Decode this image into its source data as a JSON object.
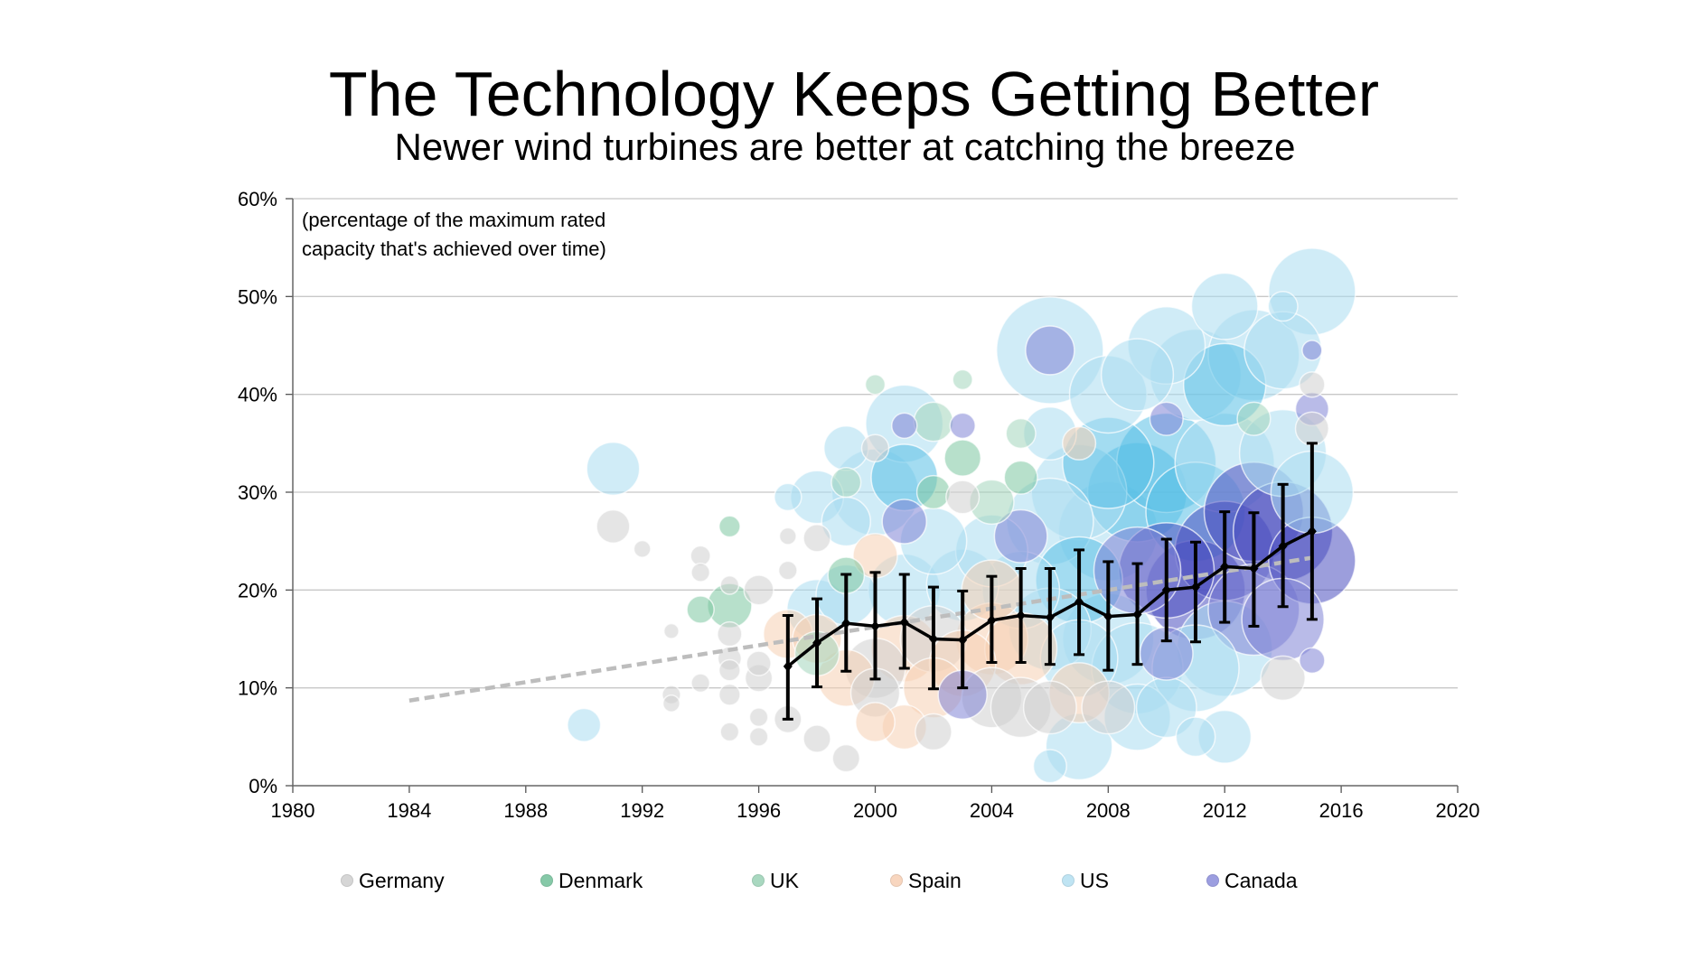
{
  "header": {
    "title": "The Technology Keeps Getting Better",
    "subtitle": "Newer wind turbines are better at catching the breeze"
  },
  "note": {
    "line1": "(percentage of the maximum rated",
    "line2": "capacity that's achieved over time)"
  },
  "chart_data": {
    "type": "scatter",
    "title": "The Technology Keeps Getting Better",
    "subtitle": "Newer wind turbines are better at catching the breeze",
    "xlabel": "",
    "ylabel": "",
    "xlim": [
      1980,
      2020
    ],
    "ylim": [
      0,
      60
    ],
    "x_ticks": [
      "1980",
      "1984",
      "1988",
      "1992",
      "1996",
      "2000",
      "2004",
      "2008",
      "2012",
      "2016",
      "2020"
    ],
    "y_ticks": [
      "0%",
      "10%",
      "20%",
      "30%",
      "40%",
      "50%",
      "60%"
    ],
    "grid": "horizontal",
    "legend_position": "bottom",
    "legend": [
      {
        "name": "Germany",
        "color": "#d6d6d6"
      },
      {
        "name": "Denmark",
        "color": "#86c9a8"
      },
      {
        "name": "UK",
        "color": "#a9d8c0"
      },
      {
        "name": "Spain",
        "color": "#f8d6bf"
      },
      {
        "name": "US",
        "color": "#bfe4f3"
      },
      {
        "name": "Canada",
        "color": "#9c9ee0"
      }
    ],
    "series_colors": {
      "Germany": "#cfcfcf",
      "Denmark": "#7cc6a0",
      "UK": "#a3d6bb",
      "Spain": "#f6cfb3",
      "US": "#a9ddf1",
      "Canada": "#7f84d6",
      "US_dark": "#58bfe6",
      "Canada_dark": "#4a4fc0"
    },
    "bubbles": [
      {
        "series": "US",
        "x": 1990,
        "y": 6.2,
        "size": 2
      },
      {
        "series": "US",
        "x": 1991,
        "y": 32.4,
        "size": 6
      },
      {
        "series": "Germany",
        "x": 1991,
        "y": 26.5,
        "size": 2
      },
      {
        "series": "Germany",
        "x": 1992,
        "y": 24.2,
        "size": 0.3
      },
      {
        "series": "Germany",
        "x": 1993,
        "y": 9.3,
        "size": 0.4
      },
      {
        "series": "Germany",
        "x": 1993,
        "y": 8.4,
        "size": 0.3
      },
      {
        "series": "Germany",
        "x": 1993,
        "y": 15.8,
        "size": 0.2
      },
      {
        "series": "Germany",
        "x": 1994,
        "y": 23.5,
        "size": 0.5
      },
      {
        "series": "Germany",
        "x": 1994,
        "y": 21.8,
        "size": 0.4
      },
      {
        "series": "Germany",
        "x": 1994,
        "y": 10.5,
        "size": 0.4
      },
      {
        "series": "Denmark",
        "x": 1994,
        "y": 18.0,
        "size": 1.2
      },
      {
        "series": "Germany",
        "x": 1995,
        "y": 13.0,
        "size": 0.8
      },
      {
        "series": "Germany",
        "x": 1995,
        "y": 11.8,
        "size": 0.6
      },
      {
        "series": "Germany",
        "x": 1995,
        "y": 15.5,
        "size": 0.9
      },
      {
        "series": "Germany",
        "x": 1995,
        "y": 9.3,
        "size": 0.6
      },
      {
        "series": "Germany",
        "x": 1995,
        "y": 5.5,
        "size": 0.4
      },
      {
        "series": "Germany",
        "x": 1995,
        "y": 20.5,
        "size": 0.4
      },
      {
        "series": "Denmark",
        "x": 1995,
        "y": 26.5,
        "size": 0.6
      },
      {
        "series": "Denmark",
        "x": 1995,
        "y": 18.4,
        "size": 4
      },
      {
        "series": "Germany",
        "x": 1996,
        "y": 20.0,
        "size": 1.5
      },
      {
        "series": "Germany",
        "x": 1996,
        "y": 11.0,
        "size": 1.2
      },
      {
        "series": "Germany",
        "x": 1996,
        "y": 12.5,
        "size": 0.9
      },
      {
        "series": "Germany",
        "x": 1996,
        "y": 7.0,
        "size": 0.4
      },
      {
        "series": "Germany",
        "x": 1996,
        "y": 5.0,
        "size": 0.4
      },
      {
        "series": "Germany",
        "x": 1997,
        "y": 22.0,
        "size": 0.4
      },
      {
        "series": "Germany",
        "x": 1997,
        "y": 25.5,
        "size": 0.3
      },
      {
        "series": "US",
        "x": 1997,
        "y": 29.5,
        "size": 1.2
      },
      {
        "series": "Spain",
        "x": 1997,
        "y": 15.5,
        "size": 5
      },
      {
        "series": "Germany",
        "x": 1997,
        "y": 6.8,
        "size": 1.2
      },
      {
        "series": "Germany",
        "x": 1998,
        "y": 25.3,
        "size": 1.2
      },
      {
        "series": "Germany",
        "x": 1998,
        "y": 4.8,
        "size": 1.2
      },
      {
        "series": "US",
        "x": 1998,
        "y": 18.0,
        "size": 8
      },
      {
        "series": "UK",
        "x": 1998,
        "y": 13.5,
        "size": 4
      },
      {
        "series": "Spain",
        "x": 1998,
        "y": 15.0,
        "size": 5
      },
      {
        "series": "US",
        "x": 1998,
        "y": 29.5,
        "size": 6
      },
      {
        "series": "US",
        "x": 1999,
        "y": 34.5,
        "size": 4
      },
      {
        "series": "US",
        "x": 1999,
        "y": 27.0,
        "size": 5
      },
      {
        "series": "Denmark",
        "x": 1999,
        "y": 21.5,
        "size": 2.5
      },
      {
        "series": "Spain",
        "x": 1999,
        "y": 11.0,
        "size": 7
      },
      {
        "series": "UK",
        "x": 1999,
        "y": 31.0,
        "size": 1.5
      },
      {
        "series": "Germany",
        "x": 1999,
        "y": 2.8,
        "size": 1.2
      },
      {
        "series": "US",
        "x": 1999,
        "y": 19.5,
        "size": 8
      },
      {
        "series": "Germany",
        "x": 2000,
        "y": 34.5,
        "size": 1.2
      },
      {
        "series": "US",
        "x": 2000,
        "y": 30.0,
        "size": 18
      },
      {
        "series": "Spain",
        "x": 2000,
        "y": 23.5,
        "size": 4
      },
      {
        "series": "Germany",
        "x": 2000,
        "y": 12.0,
        "size": 8
      },
      {
        "series": "Spain",
        "x": 2000,
        "y": 6.5,
        "size": 3
      },
      {
        "series": "Germany",
        "x": 2000,
        "y": 9.5,
        "size": 5
      },
      {
        "series": "UK",
        "x": 2000,
        "y": 41.0,
        "size": 0.5
      },
      {
        "series": "US",
        "x": 2001,
        "y": 37.0,
        "size": 14
      },
      {
        "series": "US_dark",
        "x": 2001,
        "y": 31.5,
        "size": 10
      },
      {
        "series": "Canada",
        "x": 2001,
        "y": 27.0,
        "size": 4
      },
      {
        "series": "US",
        "x": 2001,
        "y": 20.0,
        "size": 12
      },
      {
        "series": "Spain",
        "x": 2001,
        "y": 14.0,
        "size": 10
      },
      {
        "series": "Spain",
        "x": 2001,
        "y": 6.0,
        "size": 4
      },
      {
        "series": "Canada",
        "x": 2001,
        "y": 36.8,
        "size": 1
      },
      {
        "series": "UK",
        "x": 2002,
        "y": 37.2,
        "size": 3
      },
      {
        "series": "Denmark",
        "x": 2002,
        "y": 30.0,
        "size": 2
      },
      {
        "series": "US",
        "x": 2002,
        "y": 25.0,
        "size": 10
      },
      {
        "series": "Germany",
        "x": 2002,
        "y": 15.0,
        "size": 10
      },
      {
        "series": "Germany",
        "x": 2002,
        "y": 5.5,
        "size": 2.5
      },
      {
        "series": "Spain",
        "x": 2002,
        "y": 10.0,
        "size": 8
      },
      {
        "series": "Denmark",
        "x": 2003,
        "y": 33.5,
        "size": 2.5
      },
      {
        "series": "UK",
        "x": 2003,
        "y": 41.5,
        "size": 0.5
      },
      {
        "series": "Canada",
        "x": 2003,
        "y": 36.8,
        "size": 1
      },
      {
        "series": "US",
        "x": 2003,
        "y": 20.5,
        "size": 12
      },
      {
        "series": "Canada",
        "x": 2003,
        "y": 9.3,
        "size": 5
      },
      {
        "series": "Spain",
        "x": 2003,
        "y": 12.5,
        "size": 10
      },
      {
        "series": "Germany",
        "x": 2003,
        "y": 29.5,
        "size": 2
      },
      {
        "series": "UK",
        "x": 2004,
        "y": 29.0,
        "size": 4
      },
      {
        "series": "US",
        "x": 2004,
        "y": 24.0,
        "size": 12
      },
      {
        "series": "Spain",
        "x": 2004,
        "y": 15.0,
        "size": 12
      },
      {
        "series": "Germany",
        "x": 2004,
        "y": 9.0,
        "size": 8
      },
      {
        "series": "Spain",
        "x": 2004,
        "y": 20.0,
        "size": 8
      },
      {
        "series": "Denmark",
        "x": 2005,
        "y": 31.5,
        "size": 2
      },
      {
        "series": "UK",
        "x": 2005,
        "y": 36.0,
        "size": 1.5
      },
      {
        "series": "Canada",
        "x": 2005,
        "y": 25.5,
        "size": 6
      },
      {
        "series": "US",
        "x": 2005,
        "y": 20.0,
        "size": 14
      },
      {
        "series": "Spain",
        "x": 2005,
        "y": 14.0,
        "size": 12
      },
      {
        "series": "Germany",
        "x": 2005,
        "y": 8.0,
        "size": 8
      },
      {
        "series": "US",
        "x": 2006,
        "y": 44.5,
        "size": 28
      },
      {
        "series": "Canada",
        "x": 2006,
        "y": 44.5,
        "size": 5
      },
      {
        "series": "US",
        "x": 2006,
        "y": 36.0,
        "size": 6
      },
      {
        "series": "US",
        "x": 2006,
        "y": 27.0,
        "size": 18
      },
      {
        "series": "US",
        "x": 2006,
        "y": 16.0,
        "size": 16
      },
      {
        "series": "Germany",
        "x": 2006,
        "y": 8.0,
        "size": 6
      },
      {
        "series": "US",
        "x": 2006,
        "y": 2.0,
        "size": 2
      },
      {
        "series": "Spain",
        "x": 2007,
        "y": 35.0,
        "size": 2
      },
      {
        "series": "US",
        "x": 2007,
        "y": 30.0,
        "size": 22
      },
      {
        "series": "US_dark",
        "x": 2007,
        "y": 21.0,
        "size": 18
      },
      {
        "series": "US",
        "x": 2007,
        "y": 13.0,
        "size": 14
      },
      {
        "series": "US",
        "x": 2007,
        "y": 4.0,
        "size": 10
      },
      {
        "series": "Spain",
        "x": 2007,
        "y": 9.5,
        "size": 8
      },
      {
        "series": "US",
        "x": 2008,
        "y": 40.0,
        "size": 14
      },
      {
        "series": "US_dark",
        "x": 2008,
        "y": 33.0,
        "size": 20
      },
      {
        "series": "US",
        "x": 2008,
        "y": 26.0,
        "size": 24
      },
      {
        "series": "US",
        "x": 2008,
        "y": 15.0,
        "size": 20
      },
      {
        "series": "Germany",
        "x": 2008,
        "y": 8.0,
        "size": 6
      },
      {
        "series": "US",
        "x": 2009,
        "y": 42.0,
        "size": 12
      },
      {
        "series": "US_dark",
        "x": 2009,
        "y": 30.0,
        "size": 24
      },
      {
        "series": "Canada",
        "x": 2009,
        "y": 22.0,
        "size": 18
      },
      {
        "series": "US",
        "x": 2009,
        "y": 12.0,
        "size": 20
      },
      {
        "series": "US",
        "x": 2009,
        "y": 7.0,
        "size": 10
      },
      {
        "series": "US",
        "x": 2010,
        "y": 45.0,
        "size": 14
      },
      {
        "series": "US_dark",
        "x": 2010,
        "y": 33.0,
        "size": 24
      },
      {
        "series": "Canada",
        "x": 2010,
        "y": 37.5,
        "size": 2
      },
      {
        "series": "Canada_dark",
        "x": 2010,
        "y": 22.0,
        "size": 22
      },
      {
        "series": "Canada",
        "x": 2010,
        "y": 13.5,
        "size": 6
      },
      {
        "series": "US",
        "x": 2010,
        "y": 8.0,
        "size": 8
      },
      {
        "series": "US",
        "x": 2011,
        "y": 42.0,
        "size": 20
      },
      {
        "series": "US_dark",
        "x": 2011,
        "y": 28.0,
        "size": 24
      },
      {
        "series": "Canada_dark",
        "x": 2011,
        "y": 20.0,
        "size": 24
      },
      {
        "series": "US",
        "x": 2011,
        "y": 12.0,
        "size": 18
      },
      {
        "series": "US",
        "x": 2011,
        "y": 5.0,
        "size": 3
      },
      {
        "series": "US",
        "x": 2012,
        "y": 49.0,
        "size": 10
      },
      {
        "series": "US_dark",
        "x": 2012,
        "y": 41.0,
        "size": 16
      },
      {
        "series": "US",
        "x": 2012,
        "y": 33.0,
        "size": 24
      },
      {
        "series": "Canada_dark",
        "x": 2012,
        "y": 24.0,
        "size": 24
      },
      {
        "series": "US",
        "x": 2012,
        "y": 14.0,
        "size": 22
      },
      {
        "series": "US",
        "x": 2012,
        "y": 5.0,
        "size": 6
      },
      {
        "series": "US",
        "x": 2013,
        "y": 44.0,
        "size": 20
      },
      {
        "series": "Canada_dark",
        "x": 2013,
        "y": 28.0,
        "size": 24
      },
      {
        "series": "Canada",
        "x": 2013,
        "y": 18.0,
        "size": 20
      },
      {
        "series": "UK",
        "x": 2013,
        "y": 37.5,
        "size": 2
      },
      {
        "series": "US",
        "x": 2014,
        "y": 49.0,
        "size": 1.5
      },
      {
        "series": "US",
        "x": 2014,
        "y": 44.5,
        "size": 14
      },
      {
        "series": "US",
        "x": 2014,
        "y": 34.0,
        "size": 18
      },
      {
        "series": "Canada_dark",
        "x": 2014,
        "y": 26.0,
        "size": 24
      },
      {
        "series": "Canada",
        "x": 2014,
        "y": 17.0,
        "size": 16
      },
      {
        "series": "Germany",
        "x": 2014,
        "y": 11.0,
        "size": 4
      },
      {
        "series": "US",
        "x": 2015,
        "y": 50.5,
        "size": 18
      },
      {
        "series": "Canada",
        "x": 2015,
        "y": 44.5,
        "size": 0.5
      },
      {
        "series": "Canada",
        "x": 2015,
        "y": 38.5,
        "size": 2
      },
      {
        "series": "Germany",
        "x": 2015,
        "y": 36.5,
        "size": 2
      },
      {
        "series": "US",
        "x": 2015,
        "y": 30.0,
        "size": 16
      },
      {
        "series": "Canada_dark",
        "x": 2015,
        "y": 23.0,
        "size": 18
      },
      {
        "series": "Canada",
        "x": 2015,
        "y": 12.8,
        "size": 1
      },
      {
        "series": "Germany",
        "x": 2015,
        "y": 41.0,
        "size": 1
      }
    ],
    "average": {
      "x": [
        1997,
        1998,
        1999,
        2000,
        2001,
        2002,
        2003,
        2004,
        2005,
        2006,
        2007,
        2008,
        2009,
        2010,
        2011,
        2012,
        2013,
        2014,
        2015
      ],
      "y": [
        12.2,
        14.6,
        16.6,
        16.3,
        16.7,
        15.0,
        14.9,
        16.9,
        17.4,
        17.2,
        18.8,
        17.3,
        17.5,
        20.0,
        20.3,
        22.4,
        22.2,
        24.5,
        26.0
      ],
      "err_low": [
        6.8,
        10.1,
        11.7,
        10.9,
        12.0,
        9.9,
        10.0,
        12.6,
        12.6,
        12.4,
        13.4,
        11.8,
        12.4,
        14.8,
        14.7,
        16.7,
        16.3,
        18.3,
        17.0
      ],
      "err_high": [
        17.4,
        19.1,
        21.6,
        21.8,
        21.6,
        20.3,
        19.9,
        21.4,
        22.2,
        22.2,
        24.1,
        22.9,
        22.7,
        25.2,
        24.9,
        28.0,
        27.9,
        30.8,
        35.0
      ]
    },
    "trend": {
      "x": [
        1984,
        2015
      ],
      "y": [
        8.7,
        23.3
      ]
    }
  }
}
